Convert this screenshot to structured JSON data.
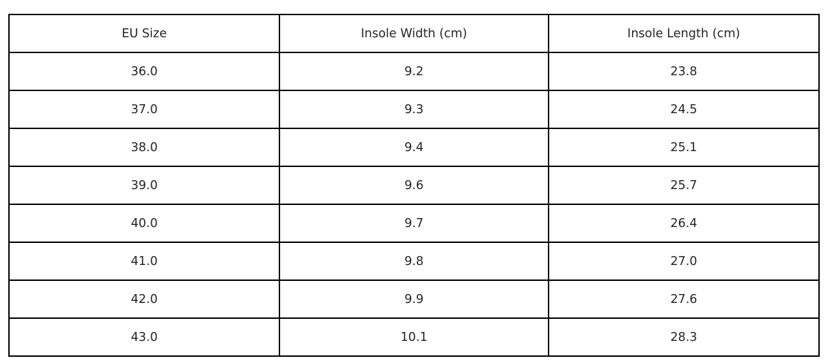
{
  "chart_data": {
    "type": "table",
    "columns": [
      "EU Size",
      "Insole Width (cm)",
      "Insole Length (cm)"
    ],
    "rows": [
      [
        "36.0",
        "9.2",
        "23.8"
      ],
      [
        "37.0",
        "9.3",
        "24.5"
      ],
      [
        "38.0",
        "9.4",
        "25.1"
      ],
      [
        "39.0",
        "9.6",
        "25.7"
      ],
      [
        "40.0",
        "9.7",
        "26.4"
      ],
      [
        "41.0",
        "9.8",
        "27.0"
      ],
      [
        "42.0",
        "9.9",
        "27.6"
      ],
      [
        "43.0",
        "10.1",
        "28.3"
      ]
    ],
    "title": "",
    "layout": {
      "border_color": "#000000",
      "text_color": "#262626",
      "background": "#ffffff",
      "grid": true
    }
  }
}
